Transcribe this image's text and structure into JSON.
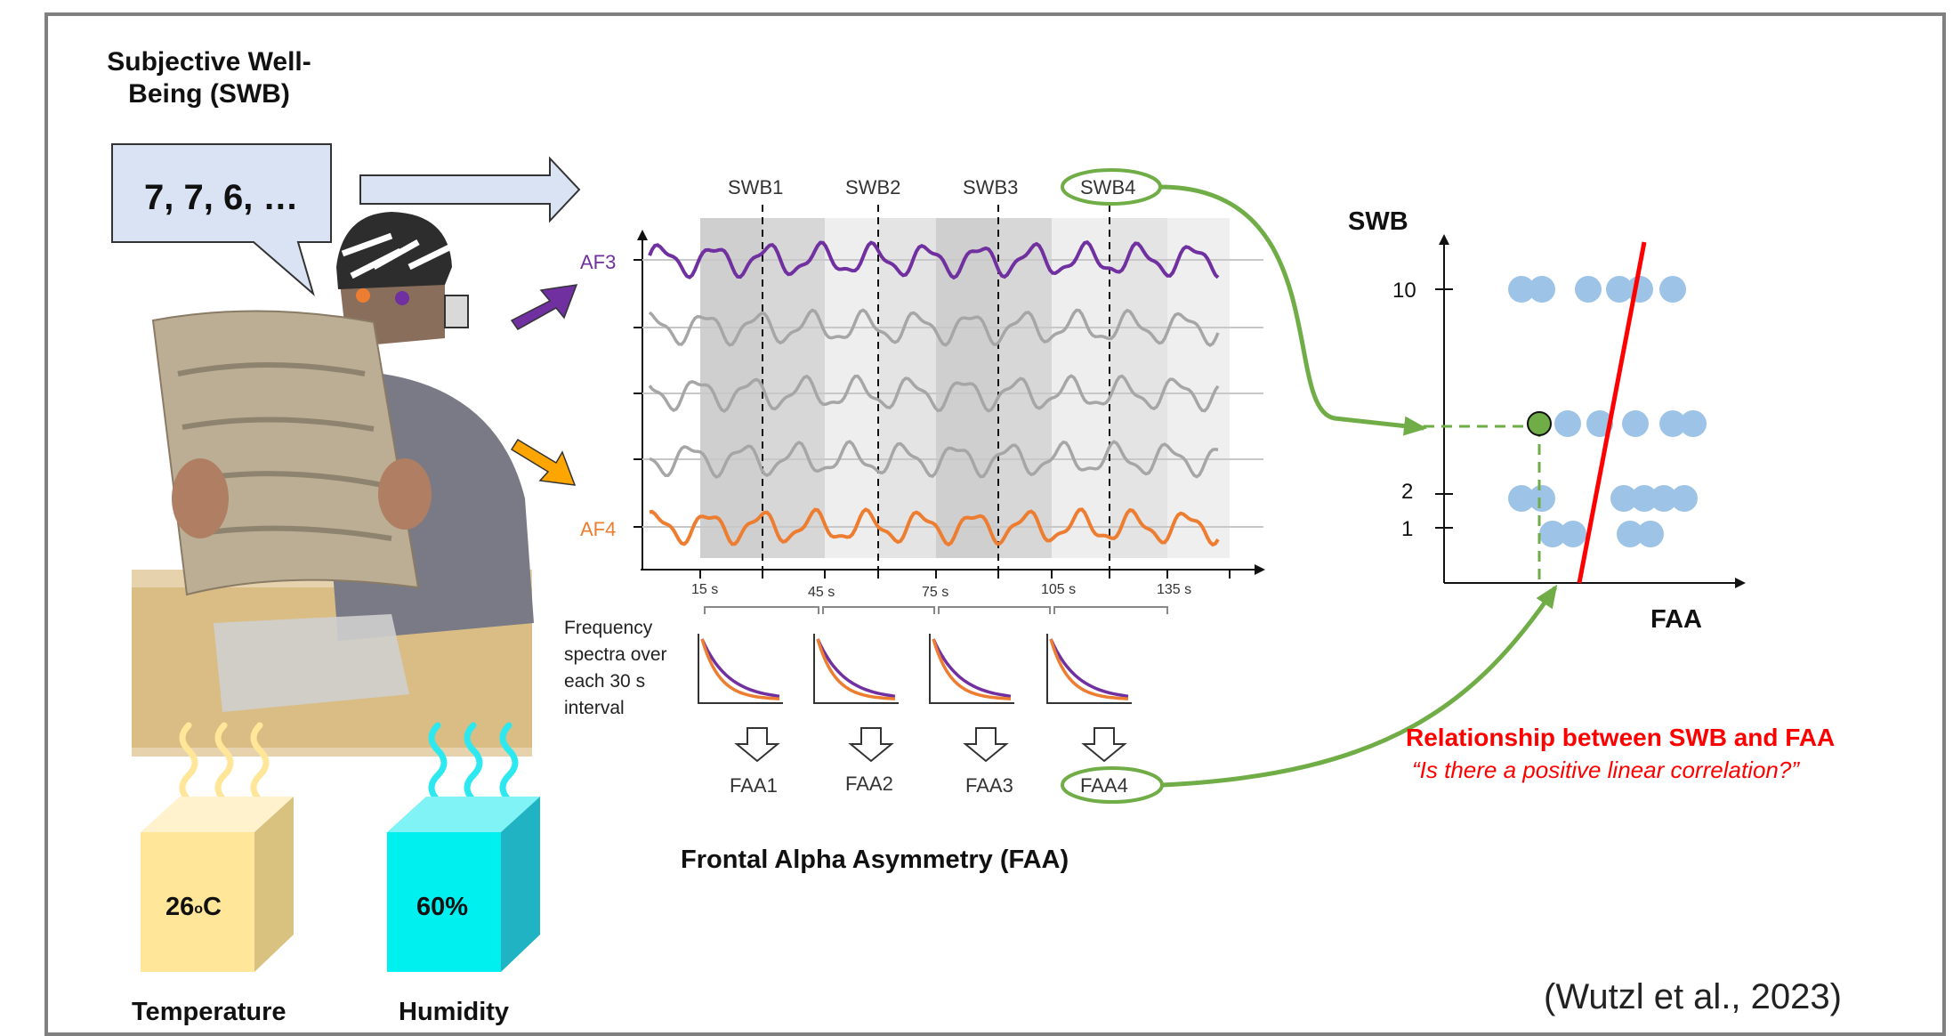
{
  "swb_label": "Subjective Well-Being (SWB)",
  "swb_values": "7, 7, 6, …",
  "eeg": {
    "channels": [
      "AF3",
      "AF4"
    ],
    "windows": [
      "SWB1",
      "SWB2",
      "SWB3",
      "SWB4"
    ],
    "times": [
      "15 s",
      "45 s",
      "75 s",
      "105 s",
      "135 s"
    ],
    "spectra_label": [
      "Frequency",
      "spectra over",
      "each 30 s",
      "interval"
    ],
    "faa": [
      "FAA1",
      "FAA2",
      "FAA3",
      "FAA4"
    ],
    "title": "Frontal Alpha Asymmetry (FAA)",
    "colors": {
      "af3": "#7030a0",
      "af4": "#ed7d31",
      "other": "#a6a6a6",
      "highlight": "#70ad47"
    }
  },
  "scatter": {
    "ylabel": "SWB",
    "xlabel": "FAA",
    "yticks": [
      "10",
      "2",
      "1"
    ],
    "point_color": "#9dc3e6",
    "line_color": "#ff0000"
  },
  "relationship": {
    "title": "Relationship between SWB and FAA",
    "question": "“Is there a positive linear correlation?”"
  },
  "temperature": {
    "value": "26",
    "degree": "o",
    "unit": "C",
    "label": "Temperature"
  },
  "humidity": {
    "value": "60%",
    "label": "Humidity"
  },
  "citation": "(Wutzl et al., 2023)"
}
